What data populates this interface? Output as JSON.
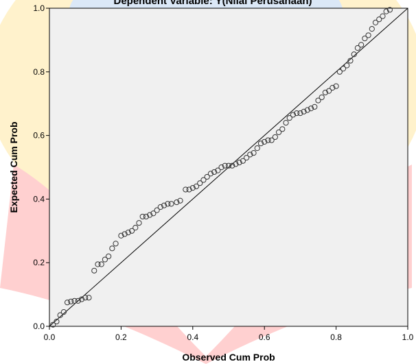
{
  "colors": {
    "plot_background": "#f0f0f0",
    "point_stroke": "#333333",
    "line": "#000000",
    "watermark_yellow": "#fff2cc",
    "watermark_red": "#ffd0d0",
    "watermark_blue": "#dbe8f7"
  },
  "chart_data": {
    "type": "scatter",
    "title": "Dependent Variable: Y(Nilai Perusahaan)",
    "xlabel": "Observed Cum Prob",
    "ylabel": "Expected Cum Prob",
    "xlim": [
      0.0,
      1.0
    ],
    "ylim": [
      0.0,
      1.0
    ],
    "xticks": [
      "0.0",
      "0.2",
      "0.4",
      "0.6",
      "0.8",
      "1.0"
    ],
    "yticks": [
      "0.0",
      "0.2",
      "0.4",
      "0.6",
      "0.8",
      "1.0"
    ],
    "grid": false,
    "reference_line": {
      "x": [
        0.0,
        1.0
      ],
      "y": [
        0.0,
        1.0
      ]
    },
    "points": [
      [
        0.01,
        0.005
      ],
      [
        0.02,
        0.015
      ],
      [
        0.03,
        0.035
      ],
      [
        0.04,
        0.045
      ],
      [
        0.05,
        0.075
      ],
      [
        0.06,
        0.078
      ],
      [
        0.07,
        0.08
      ],
      [
        0.08,
        0.08
      ],
      [
        0.09,
        0.085
      ],
      [
        0.1,
        0.09
      ],
      [
        0.11,
        0.09
      ],
      [
        0.125,
        0.175
      ],
      [
        0.135,
        0.195
      ],
      [
        0.145,
        0.195
      ],
      [
        0.155,
        0.21
      ],
      [
        0.165,
        0.22
      ],
      [
        0.175,
        0.245
      ],
      [
        0.185,
        0.26
      ],
      [
        0.2,
        0.285
      ],
      [
        0.21,
        0.29
      ],
      [
        0.22,
        0.295
      ],
      [
        0.23,
        0.3
      ],
      [
        0.24,
        0.31
      ],
      [
        0.25,
        0.325
      ],
      [
        0.26,
        0.345
      ],
      [
        0.27,
        0.345
      ],
      [
        0.28,
        0.35
      ],
      [
        0.29,
        0.355
      ],
      [
        0.3,
        0.365
      ],
      [
        0.31,
        0.375
      ],
      [
        0.32,
        0.38
      ],
      [
        0.33,
        0.385
      ],
      [
        0.34,
        0.385
      ],
      [
        0.355,
        0.39
      ],
      [
        0.365,
        0.395
      ],
      [
        0.38,
        0.43
      ],
      [
        0.39,
        0.43
      ],
      [
        0.4,
        0.435
      ],
      [
        0.41,
        0.44
      ],
      [
        0.42,
        0.45
      ],
      [
        0.43,
        0.46
      ],
      [
        0.44,
        0.47
      ],
      [
        0.45,
        0.48
      ],
      [
        0.46,
        0.485
      ],
      [
        0.47,
        0.49
      ],
      [
        0.48,
        0.5
      ],
      [
        0.49,
        0.505
      ],
      [
        0.5,
        0.505
      ],
      [
        0.51,
        0.505
      ],
      [
        0.52,
        0.51
      ],
      [
        0.53,
        0.515
      ],
      [
        0.54,
        0.52
      ],
      [
        0.55,
        0.53
      ],
      [
        0.56,
        0.54
      ],
      [
        0.57,
        0.545
      ],
      [
        0.58,
        0.56
      ],
      [
        0.59,
        0.575
      ],
      [
        0.6,
        0.58
      ],
      [
        0.61,
        0.585
      ],
      [
        0.62,
        0.585
      ],
      [
        0.63,
        0.595
      ],
      [
        0.64,
        0.61
      ],
      [
        0.65,
        0.62
      ],
      [
        0.66,
        0.64
      ],
      [
        0.67,
        0.655
      ],
      [
        0.68,
        0.665
      ],
      [
        0.69,
        0.67
      ],
      [
        0.7,
        0.67
      ],
      [
        0.71,
        0.675
      ],
      [
        0.72,
        0.68
      ],
      [
        0.73,
        0.685
      ],
      [
        0.74,
        0.69
      ],
      [
        0.75,
        0.71
      ],
      [
        0.76,
        0.72
      ],
      [
        0.77,
        0.735
      ],
      [
        0.78,
        0.74
      ],
      [
        0.79,
        0.75
      ],
      [
        0.8,
        0.755
      ],
      [
        0.81,
        0.8
      ],
      [
        0.82,
        0.81
      ],
      [
        0.83,
        0.82
      ],
      [
        0.84,
        0.835
      ],
      [
        0.85,
        0.855
      ],
      [
        0.86,
        0.875
      ],
      [
        0.87,
        0.885
      ],
      [
        0.88,
        0.905
      ],
      [
        0.89,
        0.915
      ],
      [
        0.9,
        0.935
      ],
      [
        0.91,
        0.955
      ],
      [
        0.92,
        0.965
      ],
      [
        0.93,
        0.975
      ],
      [
        0.94,
        0.99
      ],
      [
        0.95,
        0.995
      ]
    ]
  }
}
